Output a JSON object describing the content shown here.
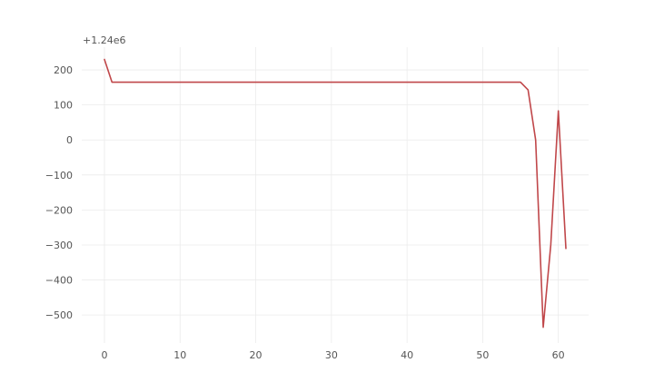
{
  "chart_data": {
    "type": "line",
    "title": "",
    "xlabel": "",
    "ylabel": "",
    "y_offset_label": "+1.24e6",
    "xlim": [
      -3,
      64
    ],
    "ylim": [
      -580,
      265
    ],
    "x_ticks": [
      0,
      10,
      20,
      30,
      40,
      50,
      60
    ],
    "x_tick_labels": [
      "0",
      "10",
      "20",
      "30",
      "40",
      "50",
      "60"
    ],
    "y_ticks": [
      200,
      100,
      0,
      -100,
      -200,
      -300,
      -400,
      -500
    ],
    "y_tick_labels": [
      "200",
      "100",
      "0",
      "−100",
      "−200",
      "−300",
      "−400",
      "−500"
    ],
    "grid": true,
    "series": [
      {
        "color": "#c0474a",
        "x": [
          0,
          1,
          2,
          3,
          4,
          5,
          6,
          7,
          8,
          9,
          10,
          11,
          12,
          13,
          14,
          15,
          16,
          17,
          18,
          19,
          20,
          21,
          22,
          23,
          24,
          25,
          26,
          27,
          28,
          29,
          30,
          31,
          32,
          33,
          34,
          35,
          36,
          37,
          38,
          39,
          40,
          41,
          42,
          43,
          44,
          45,
          46,
          47,
          48,
          49,
          50,
          51,
          52,
          53,
          54,
          55,
          56,
          57,
          58,
          59,
          60,
          61
        ],
        "y": [
          230,
          165,
          165,
          165,
          165,
          165,
          165,
          165,
          165,
          165,
          165,
          165,
          165,
          165,
          165,
          165,
          165,
          165,
          165,
          165,
          165,
          165,
          165,
          165,
          165,
          165,
          165,
          165,
          165,
          165,
          165,
          165,
          165,
          165,
          165,
          165,
          165,
          165,
          165,
          165,
          165,
          165,
          165,
          165,
          165,
          165,
          165,
          165,
          165,
          165,
          165,
          165,
          165,
          165,
          165,
          165,
          143,
          0,
          -535,
          -300,
          83,
          -310
        ]
      }
    ]
  }
}
